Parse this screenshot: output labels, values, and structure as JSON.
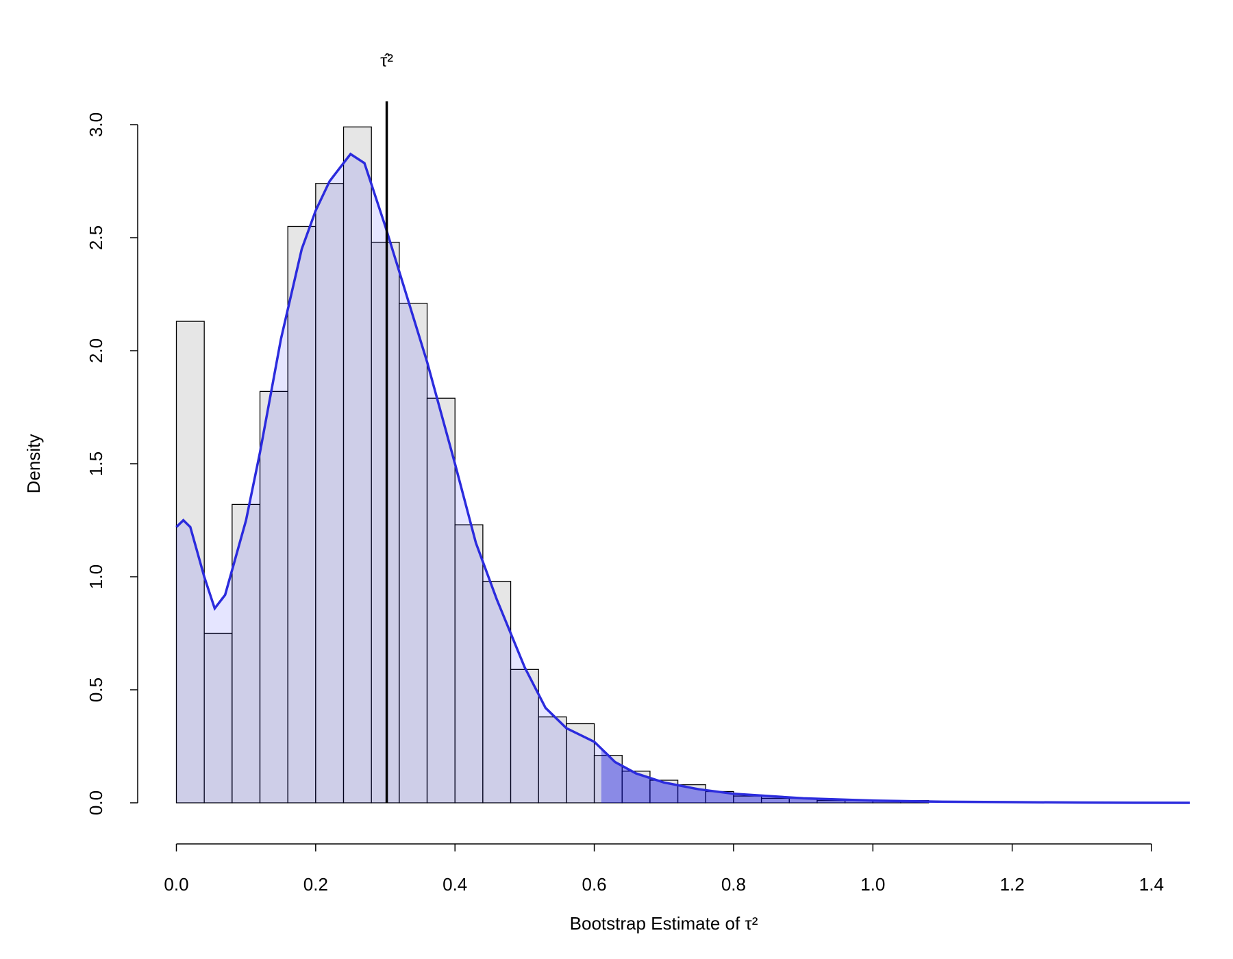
{
  "chart_data": {
    "type": "histogram",
    "x_label": "Bootstrap Estimate of τ²",
    "y_label": "Density",
    "annotation": "τ̂²",
    "bins": [
      0,
      0.04,
      0.08,
      0.12,
      0.16,
      0.2,
      0.24,
      0.28,
      0.32,
      0.36,
      0.4,
      0.44,
      0.48,
      0.52,
      0.56,
      0.6,
      0.64,
      0.68,
      0.72,
      0.76,
      0.8,
      0.84,
      0.88,
      0.92,
      0.96,
      1,
      1.04,
      1.08
    ],
    "values": [
      2.13,
      0.75,
      1.32,
      1.82,
      2.55,
      2.74,
      2.99,
      2.48,
      2.21,
      1.79,
      1.23,
      0.98,
      0.59,
      0.38,
      0.35,
      0.21,
      0.14,
      0.1,
      0.08,
      0.05,
      0.03,
      0.02,
      0.02,
      0.01,
      0.01,
      0.01,
      0.01
    ],
    "color": "#e6e6e6",
    "density": {
      "color": "#2b2bdd",
      "x": [
        0,
        0.01,
        0.02,
        0.04,
        0.055,
        0.07,
        0.1,
        0.12,
        0.15,
        0.18,
        0.2,
        0.22,
        0.25,
        0.27,
        0.3,
        0.33,
        0.36,
        0.4,
        0.43,
        0.46,
        0.5,
        0.53,
        0.56,
        0.6,
        0.63,
        0.66,
        0.7,
        0.75,
        0.8,
        0.9,
        1,
        1.1,
        1.2,
        1.3,
        1.455
      ],
      "y": [
        1.22,
        1.25,
        1.22,
        1.0,
        0.86,
        0.92,
        1.25,
        1.55,
        2.05,
        2.45,
        2.62,
        2.75,
        2.87,
        2.83,
        2.55,
        2.25,
        1.95,
        1.5,
        1.15,
        0.9,
        0.6,
        0.42,
        0.33,
        0.27,
        0.18,
        0.13,
        0.09,
        0.06,
        0.04,
        0.02,
        0.01,
        0.005,
        0.003,
        0.001,
        0
      ]
    },
    "shade_from": 0.61,
    "vline": 0.302,
    "xlim": [
      0,
      1.4
    ],
    "xticks": [
      {
        "value": 0,
        "label": "0.0"
      },
      0.2,
      0.4,
      0.6,
      0.8,
      {
        "value": 1,
        "label": "1.0"
      },
      1.2,
      1.4
    ],
    "ylim": [
      0,
      3
    ],
    "yticks": [
      {
        "value": 0,
        "label": "0.0"
      },
      {
        "value": 0.5,
        "label": "0.5"
      },
      {
        "value": 1,
        "label": "1.0"
      },
      {
        "value": 1.5,
        "label": "1.5"
      },
      {
        "value": 2,
        "label": "2.0"
      },
      {
        "value": 2.5,
        "label": "2.5"
      },
      {
        "value": 3,
        "label": "3.0"
      }
    ]
  }
}
